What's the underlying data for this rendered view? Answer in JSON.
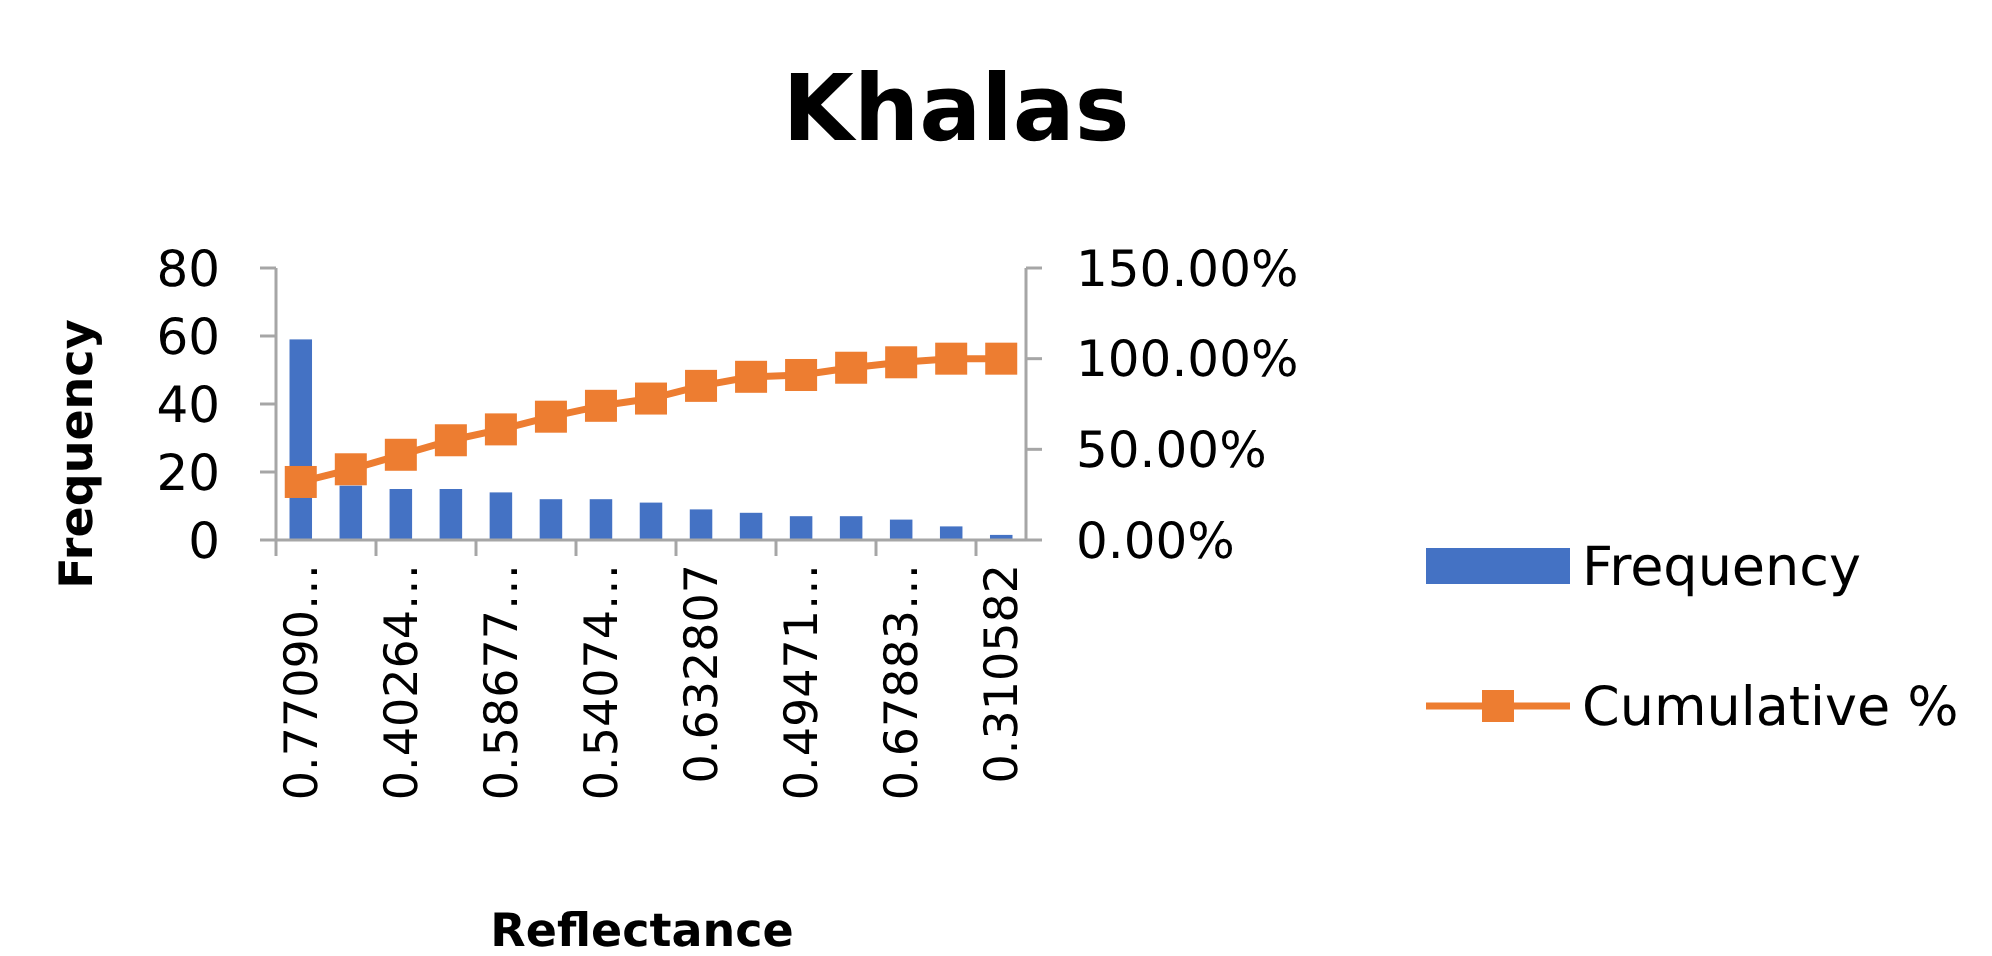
{
  "chart_data": {
    "type": "bar",
    "title": "Khalas",
    "xlabel": "Reflectance",
    "ylabel": "Frequency",
    "categories": [
      "0.77090…",
      null,
      "0.40264…",
      null,
      "0.58677…",
      null,
      "0.54074…",
      null,
      "0.632807",
      null,
      "0.49471…",
      null,
      "0.67883…",
      null,
      "0.310582"
    ],
    "series": [
      {
        "name": "Frequency",
        "color": "#4472c4",
        "values": [
          59,
          16,
          15,
          15,
          14,
          12,
          12,
          11,
          9,
          8,
          7,
          7,
          6,
          4,
          1.5
        ]
      },
      {
        "name": "Cumulative %",
        "type": "line",
        "axis": "y2",
        "color": "#ed7d31",
        "marker": "square",
        "values": [
          32,
          39,
          47,
          55,
          61,
          68,
          74,
          78,
          85,
          90,
          91,
          95,
          98,
          100,
          100
        ]
      }
    ],
    "ylim": [
      0,
      80
    ],
    "yticks": [
      0,
      20,
      40,
      60,
      80
    ],
    "y2lim": [
      0,
      150
    ],
    "y2ticks": [
      {
        "value": 0,
        "label": "0.00%"
      },
      {
        "value": 50,
        "label": "50.00%"
      },
      {
        "value": 100,
        "label": "100.00%"
      },
      {
        "value": 150,
        "label": "150.00%"
      }
    ],
    "grid": false,
    "legend": "right"
  }
}
